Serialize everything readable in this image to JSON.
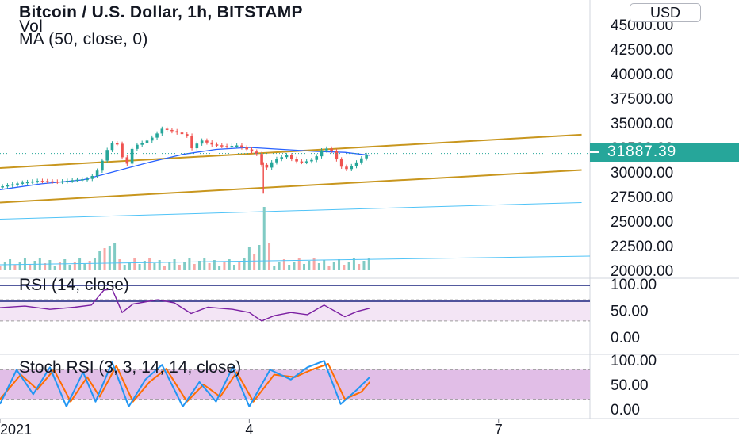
{
  "header": {
    "title": "Bitcoin / U.S. Dollar, 1h, BITSTAMP",
    "indicator_vol": "Vol",
    "indicator_ma": "MA (50, close, 0)",
    "currency_button": "USD",
    "current_price": "31887.39"
  },
  "colors": {
    "up": "#26a69a",
    "down": "#ef5350",
    "ma": "#2962ff",
    "channel": "#c8961e",
    "rsi_line": "#7b1fa2",
    "rsi_band": "#f3e5f5",
    "stoch_band": "#e1bee7",
    "stoch_k": "#2196f3",
    "stoch_d": "#ff6d00"
  },
  "panes": {
    "rsi_label": "RSI (14, close)",
    "stoch_label": "Stoch RSI (3, 3, 14, 14, close)"
  },
  "chart_data": [
    {
      "type": "candlestick",
      "title": "Bitcoin / U.S. Dollar, 1h, BITSTAMP",
      "y_ticks": [
        "45000.00",
        "42500.00",
        "40000.00",
        "37500.00",
        "35000.00",
        "32500.00",
        "30000.00",
        "27500.00",
        "25000.00",
        "22500.00",
        "20000.00"
      ],
      "ylim": [
        20000,
        45500
      ],
      "x_ticks": [
        "2021",
        "4",
        "7"
      ],
      "xlim_days": [
        1,
        8.1
      ],
      "current_price": 31887.39,
      "close_path": [
        {
          "t": 1.0,
          "p": 28500
        },
        {
          "t": 1.25,
          "p": 28900
        },
        {
          "t": 1.45,
          "p": 29100
        },
        {
          "t": 1.7,
          "p": 29000
        },
        {
          "t": 1.9,
          "p": 29200
        },
        {
          "t": 2.05,
          "p": 29300
        },
        {
          "t": 2.15,
          "p": 29800
        },
        {
          "t": 2.25,
          "p": 31500
        },
        {
          "t": 2.32,
          "p": 32800
        },
        {
          "t": 2.4,
          "p": 33100
        },
        {
          "t": 2.47,
          "p": 31500
        },
        {
          "t": 2.52,
          "p": 30600
        },
        {
          "t": 2.6,
          "p": 32600
        },
        {
          "t": 2.75,
          "p": 33100
        },
        {
          "t": 2.85,
          "p": 33600
        },
        {
          "t": 2.95,
          "p": 34400
        },
        {
          "t": 3.1,
          "p": 34100
        },
        {
          "t": 3.25,
          "p": 33700
        },
        {
          "t": 3.32,
          "p": 32200
        },
        {
          "t": 3.4,
          "p": 33300
        },
        {
          "t": 3.55,
          "p": 32800
        },
        {
          "t": 3.7,
          "p": 32600
        },
        {
          "t": 3.85,
          "p": 32700
        },
        {
          "t": 4.0,
          "p": 32200
        },
        {
          "t": 4.1,
          "p": 31800
        },
        {
          "t": 4.18,
          "p": 30100
        },
        {
          "t": 4.24,
          "p": 30800
        },
        {
          "t": 4.32,
          "p": 31300
        },
        {
          "t": 4.45,
          "p": 31700
        },
        {
          "t": 4.55,
          "p": 31100
        },
        {
          "t": 4.65,
          "p": 31000
        },
        {
          "t": 4.78,
          "p": 31300
        },
        {
          "t": 4.9,
          "p": 32500
        },
        {
          "t": 5.0,
          "p": 32100
        },
        {
          "t": 5.08,
          "p": 30800
        },
        {
          "t": 5.15,
          "p": 30200
        },
        {
          "t": 5.25,
          "p": 30700
        },
        {
          "t": 5.38,
          "p": 31600
        },
        {
          "t": 5.45,
          "p": 31887
        }
      ],
      "spike_low": {
        "t": 4.17,
        "p": 27800
      },
      "ma50_path": [
        {
          "t": 1.0,
          "p": 28200
        },
        {
          "t": 1.5,
          "p": 28800
        },
        {
          "t": 2.0,
          "p": 29200
        },
        {
          "t": 2.4,
          "p": 30100
        },
        {
          "t": 2.8,
          "p": 31000
        },
        {
          "t": 3.2,
          "p": 31800
        },
        {
          "t": 3.6,
          "p": 32300
        },
        {
          "t": 4.0,
          "p": 32500
        },
        {
          "t": 4.4,
          "p": 32300
        },
        {
          "t": 4.8,
          "p": 32100
        },
        {
          "t": 5.15,
          "p": 32000
        },
        {
          "t": 5.45,
          "p": 31700
        }
      ],
      "channel_lines": [
        {
          "start": {
            "t": 1.0,
            "p": 30400
          },
          "end": {
            "t": 8.0,
            "p": 33800
          }
        },
        {
          "start": {
            "t": 1.0,
            "p": 26900
          },
          "end": {
            "t": 8.0,
            "p": 30200
          }
        }
      ],
      "volume_ma_line": {
        "start": {
          "t": 1.0,
          "p": 25200
        },
        "end": {
          "t": 8.0,
          "p": 26900
        }
      }
    },
    {
      "type": "line",
      "title": "RSI (14, close)",
      "y_ticks": [
        "100.00",
        "50.00",
        "0.00"
      ],
      "ylim": [
        0,
        100
      ],
      "band": [
        30,
        70
      ],
      "rsi_path": [
        {
          "t": 1.0,
          "p": 55
        },
        {
          "t": 1.3,
          "p": 58
        },
        {
          "t": 1.6,
          "p": 52
        },
        {
          "t": 1.9,
          "p": 56
        },
        {
          "t": 2.1,
          "p": 60
        },
        {
          "t": 2.25,
          "p": 88
        },
        {
          "t": 2.35,
          "p": 90
        },
        {
          "t": 2.47,
          "p": 46
        },
        {
          "t": 2.6,
          "p": 62
        },
        {
          "t": 2.9,
          "p": 70
        },
        {
          "t": 3.1,
          "p": 64
        },
        {
          "t": 3.3,
          "p": 44
        },
        {
          "t": 3.5,
          "p": 56
        },
        {
          "t": 3.8,
          "p": 52
        },
        {
          "t": 4.0,
          "p": 46
        },
        {
          "t": 4.15,
          "p": 30
        },
        {
          "t": 4.3,
          "p": 40
        },
        {
          "t": 4.5,
          "p": 46
        },
        {
          "t": 4.7,
          "p": 42
        },
        {
          "t": 4.9,
          "p": 60
        },
        {
          "t": 5.15,
          "p": 38
        },
        {
          "t": 5.3,
          "p": 48
        },
        {
          "t": 5.45,
          "p": 54
        }
      ]
    },
    {
      "type": "line",
      "title": "Stoch RSI (3, 3, 14, 14, close)",
      "y_ticks": [
        "100.00",
        "50.00",
        "0.00"
      ],
      "ylim": [
        0,
        100
      ],
      "band": [
        20,
        80
      ],
      "k_path": [
        {
          "t": 1.0,
          "p": 10
        },
        {
          "t": 1.2,
          "p": 80
        },
        {
          "t": 1.4,
          "p": 30
        },
        {
          "t": 1.6,
          "p": 85
        },
        {
          "t": 1.8,
          "p": 5
        },
        {
          "t": 2.0,
          "p": 75
        },
        {
          "t": 2.15,
          "p": 15
        },
        {
          "t": 2.35,
          "p": 95
        },
        {
          "t": 2.55,
          "p": 5
        },
        {
          "t": 2.75,
          "p": 60
        },
        {
          "t": 2.95,
          "p": 90
        },
        {
          "t": 3.2,
          "p": 5
        },
        {
          "t": 3.4,
          "p": 55
        },
        {
          "t": 3.6,
          "p": 15
        },
        {
          "t": 3.8,
          "p": 85
        },
        {
          "t": 4.0,
          "p": 5
        },
        {
          "t": 4.25,
          "p": 80
        },
        {
          "t": 4.5,
          "p": 60
        },
        {
          "t": 4.7,
          "p": 85
        },
        {
          "t": 4.9,
          "p": 98
        },
        {
          "t": 5.1,
          "p": 10
        },
        {
          "t": 5.3,
          "p": 40
        },
        {
          "t": 5.45,
          "p": 65
        }
      ],
      "d_path": [
        {
          "t": 1.0,
          "p": 20
        },
        {
          "t": 1.25,
          "p": 70
        },
        {
          "t": 1.45,
          "p": 40
        },
        {
          "t": 1.65,
          "p": 80
        },
        {
          "t": 1.85,
          "p": 15
        },
        {
          "t": 2.05,
          "p": 65
        },
        {
          "t": 2.2,
          "p": 25
        },
        {
          "t": 2.4,
          "p": 88
        },
        {
          "t": 2.6,
          "p": 15
        },
        {
          "t": 2.8,
          "p": 55
        },
        {
          "t": 3.0,
          "p": 82
        },
        {
          "t": 3.25,
          "p": 15
        },
        {
          "t": 3.45,
          "p": 50
        },
        {
          "t": 3.65,
          "p": 25
        },
        {
          "t": 3.85,
          "p": 75
        },
        {
          "t": 4.05,
          "p": 15
        },
        {
          "t": 4.3,
          "p": 70
        },
        {
          "t": 4.55,
          "p": 65
        },
        {
          "t": 4.75,
          "p": 80
        },
        {
          "t": 4.95,
          "p": 92
        },
        {
          "t": 5.15,
          "p": 20
        },
        {
          "t": 5.35,
          "p": 35
        },
        {
          "t": 5.45,
          "p": 55
        }
      ]
    }
  ]
}
